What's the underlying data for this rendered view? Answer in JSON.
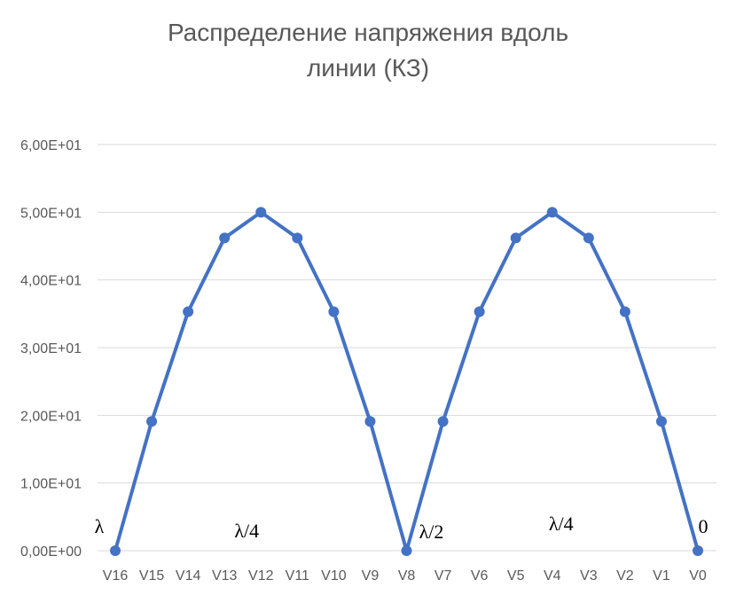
{
  "chart_data": {
    "type": "line",
    "title_lines": [
      "Распределение напряжения вдоль",
      "линии (КЗ)"
    ],
    "categories": [
      "V16",
      "V15",
      "V14",
      "V13",
      "V12",
      "V11",
      "V10",
      "V9",
      "V8",
      "V7",
      "V6",
      "V5",
      "V4",
      "V3",
      "V2",
      "V1",
      "V0"
    ],
    "series": [
      {
        "values": [
          0,
          19.1,
          35.3,
          46.2,
          50,
          46.2,
          35.3,
          19.1,
          0,
          19.1,
          35.3,
          46.2,
          50,
          46.2,
          35.3,
          19.1,
          0
        ],
        "color": "#4472c4"
      }
    ],
    "ylim": [
      0,
      60
    ],
    "yticks": [
      0,
      10,
      20,
      30,
      40,
      50,
      60
    ],
    "ytick_labels": [
      "0,00E+00",
      "1,00E+01",
      "2,00E+01",
      "3,00E+01",
      "4,00E+01",
      "5,00E+01",
      "6,00E+01"
    ],
    "grid": true,
    "annotations": [
      {
        "text": "λ",
        "category": "V16"
      },
      {
        "text": "λ/4",
        "category": "V12"
      },
      {
        "text": "λ/2",
        "category": "V8"
      },
      {
        "text": "λ/4",
        "category": "V4"
      },
      {
        "text": "0",
        "category": "V0"
      }
    ]
  }
}
